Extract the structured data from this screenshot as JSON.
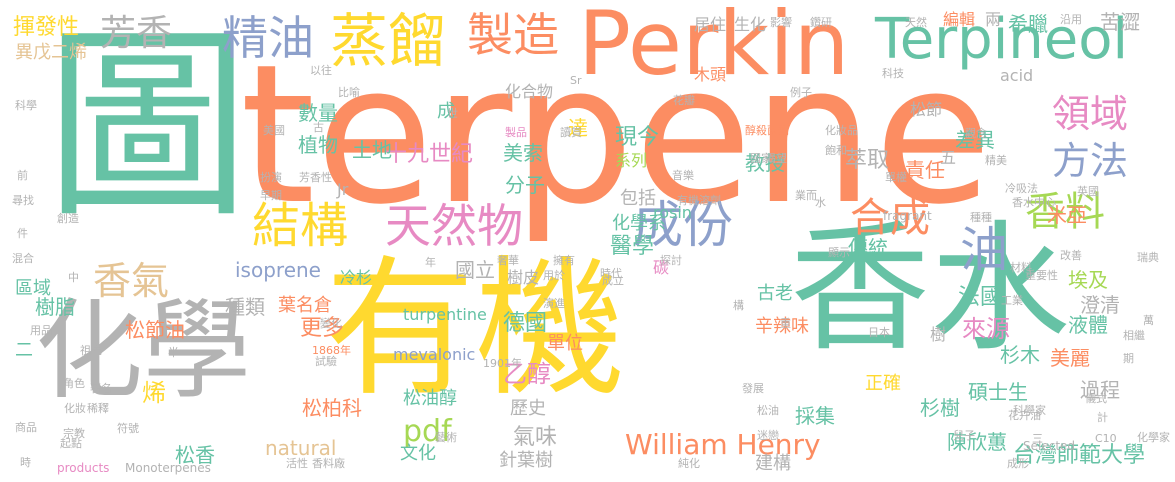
{
  "colors": {
    "teal": "#66c2a5",
    "orange": "#fc8d62",
    "blue": "#8da0cb",
    "pink": "#e78ac3",
    "green": "#a6d854",
    "yellow": "#ffd92f",
    "tan": "#e5c494",
    "gray": "#b3b3b3"
  },
  "words": [
    {
      "text": "terpene",
      "color": "orange"
    },
    {
      "text": "香水",
      "color": "teal"
    },
    {
      "text": "有機",
      "color": "yellow"
    },
    {
      "text": "化學",
      "color": "gray"
    },
    {
      "text": "圖",
      "color": "teal"
    },
    {
      "text": "Perkin",
      "color": "orange"
    },
    {
      "text": "Terpineol",
      "color": "teal"
    },
    {
      "text": "蒸餾",
      "color": "yellow"
    },
    {
      "text": "製造",
      "color": "orange"
    },
    {
      "text": "精油",
      "color": "blue"
    },
    {
      "text": "芳香",
      "color": "gray"
    },
    {
      "text": "結構",
      "color": "yellow"
    },
    {
      "text": "天然物",
      "color": "pink"
    },
    {
      "text": "成份",
      "color": "blue"
    },
    {
      "text": "合成",
      "color": "orange"
    },
    {
      "text": "香料",
      "color": "green"
    },
    {
      "text": "油",
      "color": "blue"
    },
    {
      "text": "領域",
      "color": "pink"
    },
    {
      "text": "方法",
      "color": "blue"
    },
    {
      "text": "香氣",
      "color": "tan"
    },
    {
      "text": "William Henry",
      "color": "orange"
    },
    {
      "text": "揮發性",
      "color": "yellow"
    },
    {
      "text": "十九世紀",
      "color": "pink"
    },
    {
      "text": "台灣師範大學",
      "color": "teal"
    },
    {
      "text": "isoprene",
      "color": "blue"
    },
    {
      "text": "turpentine",
      "color": "teal"
    },
    {
      "text": "natural",
      "color": "tan"
    },
    {
      "text": "mevalonic",
      "color": "blue"
    },
    {
      "text": "乙醇",
      "color": "pink"
    },
    {
      "text": "醫學",
      "color": "teal"
    },
    {
      "text": "樹脂",
      "color": "teal"
    },
    {
      "text": "種類",
      "color": "gray"
    },
    {
      "text": "萃取",
      "color": "gray"
    },
    {
      "text": "國立",
      "color": "gray"
    },
    {
      "text": "法國",
      "color": "teal"
    },
    {
      "text": "來源",
      "color": "pink"
    },
    {
      "text": "分子",
      "color": "teal"
    },
    {
      "text": "化學系",
      "color": "teal"
    },
    {
      "text": "現今",
      "color": "teal"
    },
    {
      "text": "pdf",
      "color": "green"
    },
    {
      "text": "氣味",
      "color": "gray"
    },
    {
      "text": "德國",
      "color": "teal"
    },
    {
      "text": "更多",
      "color": "orange"
    },
    {
      "text": "松節油",
      "color": "orange"
    },
    {
      "text": "松油醇",
      "color": "teal"
    },
    {
      "text": "歷史",
      "color": "gray"
    },
    {
      "text": "針葉樹",
      "color": "gray"
    },
    {
      "text": "陳欣蕙",
      "color": "teal"
    },
    {
      "text": "美麗",
      "color": "orange"
    },
    {
      "text": "碩士生",
      "color": "teal"
    },
    {
      "text": "過程",
      "color": "gray"
    },
    {
      "text": "液體",
      "color": "teal"
    },
    {
      "text": "澄清",
      "color": "gray"
    },
    {
      "text": "埃及",
      "color": "green"
    },
    {
      "text": "米亞",
      "color": "orange"
    },
    {
      "text": "傳統",
      "color": "teal"
    },
    {
      "text": "責任",
      "color": "orange"
    },
    {
      "text": "差異",
      "color": "teal"
    },
    {
      "text": "教授",
      "color": "teal"
    },
    {
      "text": "系列",
      "color": "green"
    },
    {
      "text": "達",
      "color": "yellow"
    },
    {
      "text": "土地",
      "color": "teal"
    },
    {
      "text": "數量",
      "color": "teal"
    },
    {
      "text": "植物",
      "color": "teal"
    },
    {
      "text": "美索",
      "color": "teal"
    },
    {
      "text": "成",
      "color": "teal"
    },
    {
      "text": "化合物",
      "color": "gray"
    },
    {
      "text": "居住",
      "color": "gray"
    },
    {
      "text": "生化",
      "color": "gray"
    },
    {
      "text": "木頭",
      "color": "orange"
    },
    {
      "text": "松節",
      "color": "gray"
    },
    {
      "text": "acid",
      "color": "gray"
    },
    {
      "text": "希臘",
      "color": "teal"
    },
    {
      "text": "苦澀",
      "color": "gray"
    },
    {
      "text": "編輯",
      "color": "orange"
    },
    {
      "text": "兩",
      "color": "gray"
    },
    {
      "text": "異戊二烯",
      "color": "tan"
    },
    {
      "text": "區域",
      "color": "teal"
    },
    {
      "text": "烯",
      "color": "yellow"
    },
    {
      "text": "二",
      "color": "teal"
    },
    {
      "text": "冷杉",
      "color": "teal"
    },
    {
      "text": "樹皮",
      "color": "gray"
    },
    {
      "text": "松香",
      "color": "teal"
    },
    {
      "text": "松柏科",
      "color": "orange"
    },
    {
      "text": "葉名倉",
      "color": "orange"
    },
    {
      "text": "文化",
      "color": "teal"
    },
    {
      "text": "單位",
      "color": "orange"
    },
    {
      "text": "包括",
      "color": "gray"
    },
    {
      "text": "辛辣味",
      "color": "orange"
    },
    {
      "text": "古老",
      "color": "teal"
    },
    {
      "text": "採集",
      "color": "teal"
    },
    {
      "text": "杉樹",
      "color": "teal"
    },
    {
      "text": "杉木",
      "color": "teal"
    },
    {
      "text": "正確",
      "color": "yellow"
    },
    {
      "text": "建構",
      "color": "gray"
    },
    {
      "text": "碳",
      "color": "pink"
    },
    {
      "text": "rosin",
      "color": "teal"
    },
    {
      "text": "Jr",
      "color": "gray"
    },
    {
      "text": "樹",
      "color": "gray"
    },
    {
      "text": "五",
      "color": "gray"
    },
    {
      "text": "products",
      "color": "pink"
    },
    {
      "text": "Monoterpenes",
      "color": "gray"
    },
    {
      "text": "Selected",
      "color": "gray"
    },
    {
      "text": "fragrant",
      "color": "gray"
    },
    {
      "text": "1868年",
      "color": "orange"
    },
    {
      "text": "1901年",
      "color": "gray"
    },
    {
      "text": "C10",
      "color": "gray"
    },
    {
      "text": "Sr",
      "color": "gray"
    },
    {
      "text": "科學",
      "color": "gray"
    },
    {
      "text": "以往",
      "color": "gray"
    },
    {
      "text": "比喻",
      "color": "gray"
    },
    {
      "text": "前",
      "color": "gray"
    },
    {
      "text": "尋找",
      "color": "gray"
    },
    {
      "text": "件",
      "color": "gray"
    },
    {
      "text": "混合",
      "color": "gray"
    },
    {
      "text": "用品",
      "color": "gray"
    },
    {
      "text": "祖先",
      "color": "gray"
    },
    {
      "text": "角色",
      "color": "gray"
    },
    {
      "text": "化妝",
      "color": "gray"
    },
    {
      "text": "商品",
      "color": "gray"
    },
    {
      "text": "宗教",
      "color": "gray"
    },
    {
      "text": "起點",
      "color": "gray"
    },
    {
      "text": "時",
      "color": "gray"
    },
    {
      "text": "活性",
      "color": "gray"
    },
    {
      "text": "香料廠",
      "color": "gray"
    },
    {
      "text": "藝術",
      "color": "gray"
    },
    {
      "text": "稀釋",
      "color": "gray"
    },
    {
      "text": "符號",
      "color": "gray"
    },
    {
      "text": "著名",
      "color": "gray"
    },
    {
      "text": "試驗",
      "color": "gray"
    },
    {
      "text": "變化",
      "color": "gray"
    },
    {
      "text": "製品",
      "color": "pink"
    },
    {
      "text": "讀賞",
      "color": "gray"
    },
    {
      "text": "花瓣",
      "color": "gray"
    },
    {
      "text": "醇殺菌劑",
      "color": "orange"
    },
    {
      "text": "化妝品",
      "color": "gray"
    },
    {
      "text": "觀念",
      "color": "gray"
    },
    {
      "text": "飽和",
      "color": "gray"
    },
    {
      "text": "精美",
      "color": "gray"
    },
    {
      "text": "國家",
      "color": "gray"
    },
    {
      "text": "冷吸法",
      "color": "gray"
    },
    {
      "text": "香水中心",
      "color": "gray"
    },
    {
      "text": "英國",
      "color": "gray"
    },
    {
      "text": "種種",
      "color": "gray"
    },
    {
      "text": "顯示",
      "color": "gray"
    },
    {
      "text": "材料",
      "color": "gray"
    },
    {
      "text": "重要性",
      "color": "gray"
    },
    {
      "text": "工業",
      "color": "gray"
    },
    {
      "text": "相繼",
      "color": "gray"
    },
    {
      "text": "期",
      "color": "gray"
    },
    {
      "text": "儀式",
      "color": "gray"
    },
    {
      "text": "科學家",
      "color": "gray"
    },
    {
      "text": "花卉油",
      "color": "gray"
    },
    {
      "text": "計",
      "color": "gray"
    },
    {
      "text": "化學家",
      "color": "gray"
    },
    {
      "text": "發展",
      "color": "gray"
    },
    {
      "text": "松油",
      "color": "gray"
    },
    {
      "text": "迷戀",
      "color": "gray"
    },
    {
      "text": "兒子",
      "color": "gray"
    },
    {
      "text": "成形",
      "color": "gray"
    },
    {
      "text": "純化",
      "color": "gray"
    },
    {
      "text": "演進",
      "color": "gray"
    },
    {
      "text": "構",
      "color": "gray"
    },
    {
      "text": "重",
      "color": "gray"
    },
    {
      "text": "日本",
      "color": "gray"
    },
    {
      "text": "萬",
      "color": "gray"
    },
    {
      "text": "改善",
      "color": "gray"
    },
    {
      "text": "瑞典",
      "color": "gray"
    },
    {
      "text": "奢華",
      "color": "gray"
    },
    {
      "text": "擁有",
      "color": "gray"
    },
    {
      "text": "成立",
      "color": "gray"
    },
    {
      "text": "時代",
      "color": "gray"
    },
    {
      "text": "探討",
      "color": "gray"
    },
    {
      "text": "用於",
      "color": "gray"
    },
    {
      "text": "年",
      "color": "gray"
    },
    {
      "text": "有機溶劑",
      "color": "gray"
    },
    {
      "text": "芳香性",
      "color": "gray"
    },
    {
      "text": "單權",
      "color": "gray"
    },
    {
      "text": "扮演",
      "color": "gray"
    },
    {
      "text": "早期",
      "color": "gray"
    },
    {
      "text": "美國",
      "color": "gray"
    },
    {
      "text": "中",
      "color": "gray"
    },
    {
      "text": "創造",
      "color": "gray"
    },
    {
      "text": "影響",
      "color": "gray"
    },
    {
      "text": "鑽研",
      "color": "gray"
    },
    {
      "text": "天然",
      "color": "gray"
    },
    {
      "text": "沿用",
      "color": "gray"
    },
    {
      "text": "科技",
      "color": "gray"
    },
    {
      "text": "例子",
      "color": "gray"
    },
    {
      "text": "音樂",
      "color": "gray"
    },
    {
      "text": "渴望",
      "color": "gray"
    },
    {
      "text": "業而",
      "color": "gray"
    },
    {
      "text": "水",
      "color": "gray"
    },
    {
      "text": "三",
      "color": "gray"
    },
    {
      "text": "半",
      "color": "gray"
    },
    {
      "text": "世",
      "color": "gray"
    },
    {
      "text": "古",
      "color": "gray"
    }
  ]
}
